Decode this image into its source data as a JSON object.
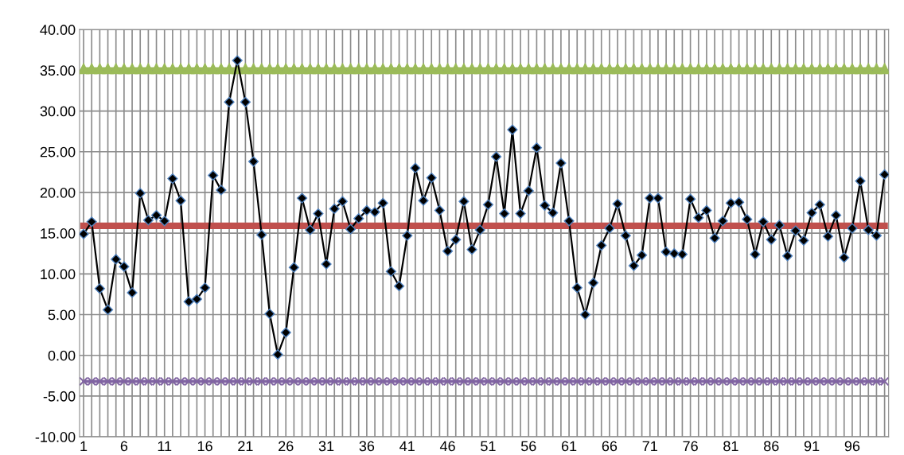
{
  "chart_data": {
    "type": "line",
    "categories": [
      "1",
      null,
      null,
      null,
      null,
      "6",
      null,
      null,
      null,
      null,
      "11",
      null,
      null,
      null,
      null,
      "16",
      null,
      null,
      null,
      null,
      "21",
      null,
      null,
      null,
      null,
      "26",
      null,
      null,
      null,
      null,
      "31",
      null,
      null,
      null,
      null,
      "36",
      null,
      null,
      null,
      null,
      "41",
      null,
      null,
      null,
      null,
      "46",
      null,
      null,
      null,
      null,
      "51",
      null,
      null,
      null,
      null,
      "56",
      null,
      null,
      null,
      null,
      "61",
      null,
      null,
      null,
      null,
      "66",
      null,
      null,
      null,
      null,
      "71",
      null,
      null,
      null,
      null,
      "76",
      null,
      null,
      null,
      null,
      "81",
      null,
      null,
      null,
      null,
      "86",
      null,
      null,
      null,
      null,
      "91",
      null,
      null,
      null,
      null,
      "96",
      null,
      null,
      null,
      null
    ],
    "series": [
      {
        "color": "#9bbb59",
        "marker": "triangle",
        "values": [
          35.2,
          35.2,
          35.2,
          35.2,
          35.2,
          35.2,
          35.2,
          35.2,
          35.2,
          35.2,
          35.2,
          35.2,
          35.2,
          35.2,
          35.2,
          35.2,
          35.2,
          35.2,
          35.2,
          35.2,
          35.2,
          35.2,
          35.2,
          35.2,
          35.2,
          35.2,
          35.2,
          35.2,
          35.2,
          35.2,
          35.2,
          35.2,
          35.2,
          35.2,
          35.2,
          35.2,
          35.2,
          35.2,
          35.2,
          35.2,
          35.2,
          35.2,
          35.2,
          35.2,
          35.2,
          35.2,
          35.2,
          35.2,
          35.2,
          35.2,
          35.2,
          35.2,
          35.2,
          35.2,
          35.2,
          35.2,
          35.2,
          35.2,
          35.2,
          35.2,
          35.2,
          35.2,
          35.2,
          35.2,
          35.2,
          35.2,
          35.2,
          35.2,
          35.2,
          35.2,
          35.2,
          35.2,
          35.2,
          35.2,
          35.2,
          35.2,
          35.2,
          35.2,
          35.2,
          35.2,
          35.2,
          35.2,
          35.2,
          35.2,
          35.2,
          35.2,
          35.2,
          35.2,
          35.2,
          35.2,
          35.2,
          35.2,
          35.2,
          35.2,
          35.2,
          35.2,
          35.2,
          35.2,
          35.2,
          35.2
        ]
      },
      {
        "color": "#c0504d",
        "marker": "none",
        "values": [
          15.9,
          15.9,
          15.9,
          15.9,
          15.9,
          15.9,
          15.9,
          15.9,
          15.9,
          15.9,
          15.9,
          15.9,
          15.9,
          15.9,
          15.9,
          15.9,
          15.9,
          15.9,
          15.9,
          15.9,
          15.9,
          15.9,
          15.9,
          15.9,
          15.9,
          15.9,
          15.9,
          15.9,
          15.9,
          15.9,
          15.9,
          15.9,
          15.9,
          15.9,
          15.9,
          15.9,
          15.9,
          15.9,
          15.9,
          15.9,
          15.9,
          15.9,
          15.9,
          15.9,
          15.9,
          15.9,
          15.9,
          15.9,
          15.9,
          15.9,
          15.9,
          15.9,
          15.9,
          15.9,
          15.9,
          15.9,
          15.9,
          15.9,
          15.9,
          15.9,
          15.9,
          15.9,
          15.9,
          15.9,
          15.9,
          15.9,
          15.9,
          15.9,
          15.9,
          15.9,
          15.9,
          15.9,
          15.9,
          15.9,
          15.9,
          15.9,
          15.9,
          15.9,
          15.9,
          15.9,
          15.9,
          15.9,
          15.9,
          15.9,
          15.9,
          15.9,
          15.9,
          15.9,
          15.9,
          15.9,
          15.9,
          15.9,
          15.9,
          15.9,
          15.9,
          15.9,
          15.9,
          15.9,
          15.9,
          15.9
        ]
      },
      {
        "color": "#8064a2",
        "marker": "cross",
        "values": [
          -3.2,
          -3.2,
          -3.2,
          -3.2,
          -3.2,
          -3.2,
          -3.2,
          -3.2,
          -3.2,
          -3.2,
          -3.2,
          -3.2,
          -3.2,
          -3.2,
          -3.2,
          -3.2,
          -3.2,
          -3.2,
          -3.2,
          -3.2,
          -3.2,
          -3.2,
          -3.2,
          -3.2,
          -3.2,
          -3.2,
          -3.2,
          -3.2,
          -3.2,
          -3.2,
          -3.2,
          -3.2,
          -3.2,
          -3.2,
          -3.2,
          -3.2,
          -3.2,
          -3.2,
          -3.2,
          -3.2,
          -3.2,
          -3.2,
          -3.2,
          -3.2,
          -3.2,
          -3.2,
          -3.2,
          -3.2,
          -3.2,
          -3.2,
          -3.2,
          -3.2,
          -3.2,
          -3.2,
          -3.2,
          -3.2,
          -3.2,
          -3.2,
          -3.2,
          -3.2,
          -3.2,
          -3.2,
          -3.2,
          -3.2,
          -3.2,
          -3.2,
          -3.2,
          -3.2,
          -3.2,
          -3.2,
          -3.2,
          -3.2,
          -3.2,
          -3.2,
          -3.2,
          -3.2,
          -3.2,
          -3.2,
          -3.2,
          -3.2,
          -3.2,
          -3.2,
          -3.2,
          -3.2,
          -3.2,
          -3.2,
          -3.2,
          -3.2,
          -3.2,
          -3.2,
          -3.2,
          -3.2,
          -3.2,
          -3.2,
          -3.2,
          -3.2,
          -3.2,
          -3.2,
          -3.2,
          -3.2
        ]
      },
      {
        "color": "#000000",
        "marker": "diamond",
        "values": [
          14.9,
          16.4,
          8.2,
          5.6,
          11.8,
          10.9,
          7.7,
          19.9,
          16.6,
          17.2,
          16.5,
          21.7,
          19.0,
          6.6,
          6.9,
          8.3,
          22.1,
          20.3,
          31.1,
          36.2,
          31.1,
          23.8,
          14.8,
          5.1,
          0.1,
          2.8,
          10.8,
          19.3,
          15.4,
          17.4,
          11.2,
          18.0,
          18.9,
          15.5,
          16.8,
          17.8,
          17.6,
          18.7,
          10.3,
          8.5,
          14.7,
          23.0,
          19.0,
          21.8,
          17.8,
          12.8,
          14.2,
          18.9,
          13.0,
          15.4,
          18.5,
          24.4,
          17.4,
          27.7,
          17.4,
          20.2,
          25.5,
          18.4,
          17.5,
          23.6,
          16.5,
          8.3,
          5.0,
          8.9,
          13.5,
          15.6,
          18.6,
          14.7,
          11.0,
          12.3,
          19.3,
          19.3,
          12.7,
          12.5,
          12.4,
          19.2,
          16.9,
          17.8,
          14.4,
          16.5,
          18.7,
          18.8,
          16.7,
          12.4,
          16.4,
          14.2,
          16.0,
          12.2,
          15.3,
          14.1,
          17.5,
          18.5,
          14.6,
          17.2,
          12.0,
          15.6,
          21.4,
          15.4,
          14.7,
          22.2
        ]
      }
    ],
    "ylim": [
      -10,
      40
    ],
    "yticks": [
      {
        "value": -10,
        "label": "-10.00"
      },
      {
        "value": -5,
        "label": "-5.00"
      },
      {
        "value": 0,
        "label": "0.00"
      },
      {
        "value": 5,
        "label": "5.00"
      },
      {
        "value": 10,
        "label": "10.00"
      },
      {
        "value": 15,
        "label": "15.00"
      },
      {
        "value": 20,
        "label": "20.00"
      },
      {
        "value": 25,
        "label": "25.00"
      },
      {
        "value": 30,
        "label": "30.00"
      },
      {
        "value": 35,
        "label": "35.00"
      },
      {
        "value": 40,
        "label": "40.00"
      }
    ],
    "grid": true,
    "legend": false
  }
}
